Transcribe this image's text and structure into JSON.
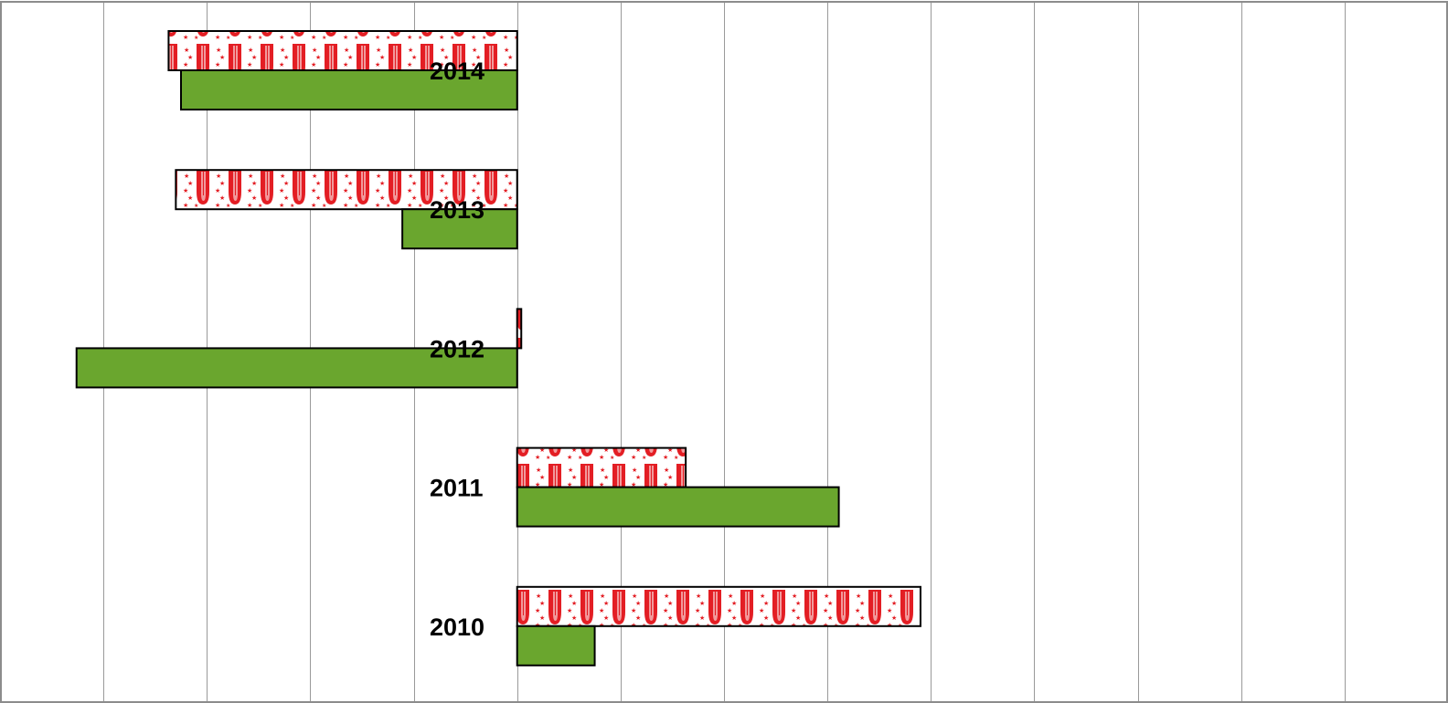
{
  "chart_data": {
    "type": "bar",
    "orientation": "horizontal",
    "categories": [
      "2014",
      "2013",
      "2012",
      "2011",
      "2010"
    ],
    "series": [
      {
        "color": "#E31E24",
        "fill_pattern": "red-white-flag-stars",
        "values": [
          -3.37,
          -3.3,
          0.04,
          1.63,
          3.9
        ]
      },
      {
        "color": "#6AA62E",
        "values": [
          -3.25,
          -1.11,
          -4.26,
          3.11,
          0.75
        ]
      }
    ],
    "xlim": [
      -5,
      9
    ],
    "grid": true,
    "legend": "none"
  },
  "colors": {
    "grid": "#9a9a9a",
    "frame": "#8c8c8c",
    "bar_outline": "#000000",
    "flag_red": "#E31E24",
    "flag_white": "#ffffff",
    "green": "#6AA62E"
  }
}
